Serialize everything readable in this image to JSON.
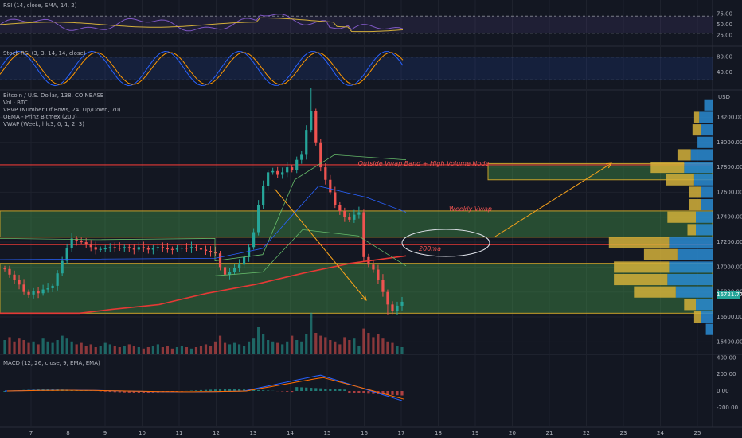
{
  "panes": {
    "rsi": {
      "title": "RSI (14, close, SMA, 14, 2)",
      "ticks": [
        "75.00",
        "50.00",
        "25.00"
      ]
    },
    "stoch": {
      "title": "Stoch RSI (3, 3, 14, 14, close)",
      "ticks": [
        "80.00",
        "40.00"
      ]
    },
    "main": {
      "legend": [
        "Bitcoin / U.S. Dollar, 138, COINBASE",
        "Vol · BTC",
        "VRVP (Number Of Rows, 24, Up/Down, 70)",
        "QEMA - Prinz Bitmex (200)",
        "VWAP (Week, hlc3, 0, 1, 2, 3)"
      ],
      "currency": "USD",
      "last_price": "16721.77"
    },
    "macd": {
      "title": "MACD (12, 26, close, 9, EMA, EMA)",
      "ticks": [
        "400.00",
        "200.00",
        "0.00",
        "-200.00"
      ]
    }
  },
  "annotations": {
    "outside_vwap": "Outside Vwap Band + High Volume Node",
    "weekly_vwap": "Weekly Vwap",
    "ma200": "200ma"
  },
  "colors": {
    "background": "#131722",
    "up": "#26a69a",
    "down": "#ef5350",
    "zone_fill": "#4caf50",
    "zone_border": "#c8a12a",
    "red_line": "#e53935",
    "arrow": "#f7a21b",
    "rsi_line": "#7e57c2",
    "rsi_ma": "#d4b03a",
    "stoch_k": "#2962ff",
    "stoch_d": "#ff9800",
    "vp_up": "#2a8bd1",
    "vp_down": "#d4b03a"
  },
  "chart_data": {
    "type": "candlestick",
    "symbol": "Bitcoin / U.S. Dollar",
    "x_ticks": [
      "7",
      "8",
      "9",
      "10",
      "11",
      "12",
      "13",
      "14",
      "15",
      "16",
      "17",
      "18",
      "19",
      "20",
      "21",
      "22",
      "23",
      "24",
      "25"
    ],
    "y_ticks": [
      "18200.00",
      "18000.00",
      "17800.00",
      "17600.00",
      "17400.00",
      "17200.00",
      "17000.00",
      "16800.00",
      "16600.00",
      "16400.00"
    ],
    "ylim": [
      16300,
      18420
    ],
    "zones": [
      {
        "name": "Outside Vwap Band + High Volume Node",
        "from": 17700,
        "to": 17830
      },
      {
        "name": "Weekly Vwap",
        "from": 17240,
        "to": 17450
      },
      {
        "name": "lower_zone",
        "from": 16630,
        "to": 17030
      }
    ],
    "horizontal_lines": [
      17820,
      17180
    ],
    "candle_closes": [
      16985,
      16940,
      16900,
      16860,
      16800,
      16780,
      16805,
      16790,
      16820,
      16830,
      16850,
      16950,
      17050,
      17150,
      17230,
      17210,
      17200,
      17180,
      17160,
      17140,
      17145,
      17150,
      17160,
      17155,
      17150,
      17160,
      17150,
      17140,
      17160,
      17150,
      17140,
      17150,
      17160,
      17150,
      17145,
      17140,
      17150,
      17155,
      17150,
      17160,
      17150,
      17140,
      17130,
      17120,
      17110,
      17000,
      16940,
      16960,
      16990,
      17020,
      17080,
      17160,
      17280,
      17500,
      17650,
      17760,
      17770,
      17740,
      17760,
      17800,
      17780,
      17860,
      17900,
      18100,
      18250,
      18000,
      17800,
      17700,
      17600,
      17500,
      17450,
      17400,
      17380,
      17420,
      17440,
      17080,
      17020,
      16980,
      16900,
      16800,
      16700,
      16650,
      16690,
      16722
    ],
    "volumes": [
      20,
      24,
      18,
      22,
      20,
      16,
      18,
      14,
      22,
      18,
      16,
      20,
      26,
      22,
      18,
      14,
      16,
      12,
      14,
      10,
      12,
      16,
      14,
      12,
      10,
      12,
      14,
      12,
      10,
      8,
      10,
      12,
      14,
      10,
      12,
      8,
      10,
      12,
      10,
      8,
      10,
      12,
      14,
      12,
      18,
      26,
      16,
      14,
      16,
      14,
      12,
      18,
      22,
      38,
      28,
      20,
      18,
      16,
      14,
      18,
      26,
      20,
      18,
      28,
      58,
      30,
      26,
      24,
      20,
      18,
      14,
      24,
      20,
      22,
      12,
      36,
      30,
      24,
      28,
      22,
      18,
      16,
      12,
      10
    ],
    "volume_profile": [
      {
        "price": 18300,
        "up": 10,
        "down": 0
      },
      {
        "price": 18200,
        "up": 16,
        "down": 6
      },
      {
        "price": 18100,
        "up": 14,
        "down": 10
      },
      {
        "price": 18000,
        "up": 18,
        "down": 0
      },
      {
        "price": 17900,
        "up": 26,
        "down": 16
      },
      {
        "price": 17800,
        "up": 34,
        "down": 40
      },
      {
        "price": 17700,
        "up": 22,
        "down": 34
      },
      {
        "price": 17600,
        "up": 14,
        "down": 14
      },
      {
        "price": 17500,
        "up": 14,
        "down": 14
      },
      {
        "price": 17400,
        "up": 20,
        "down": 34
      },
      {
        "price": 17300,
        "up": 20,
        "down": 10
      },
      {
        "price": 17200,
        "up": 52,
        "down": 72
      },
      {
        "price": 17100,
        "up": 42,
        "down": 40
      },
      {
        "price": 17000,
        "up": 52,
        "down": 66
      },
      {
        "price": 16900,
        "up": 54,
        "down": 64
      },
      {
        "price": 16800,
        "up": 44,
        "down": 50
      },
      {
        "price": 16700,
        "up": 20,
        "down": 14
      },
      {
        "price": 16600,
        "up": 14,
        "down": 8
      },
      {
        "price": 16500,
        "up": 8,
        "down": 0
      }
    ]
  }
}
